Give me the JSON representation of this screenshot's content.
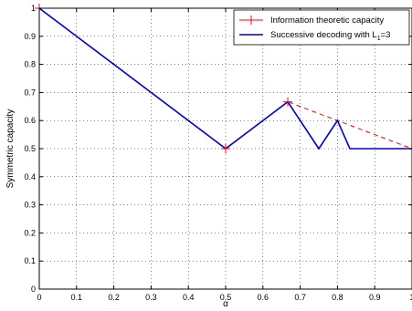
{
  "chart_data": {
    "type": "line",
    "xlabel": "α",
    "ylabel": "Symmetric capacity",
    "xlim": [
      0,
      1
    ],
    "ylim": [
      0,
      1
    ],
    "xticks": [
      "0",
      "0.1",
      "0.2",
      "0.3",
      "0.4",
      "0.5",
      "0.6",
      "0.7",
      "0.8",
      "0.9",
      "1"
    ],
    "yticks": [
      "0",
      "0.1",
      "0.2",
      "0.3",
      "0.4",
      "0.5",
      "0.6",
      "0.7",
      "0.8",
      "0.9",
      "1"
    ],
    "grid": true,
    "legend_position": "top-right",
    "series": [
      {
        "name": "Information theoretic capacity",
        "color": "#ff0000",
        "style": "dashed-with-plus-markers",
        "x": [
          0,
          0.5,
          0.6667,
          1
        ],
        "y": [
          1,
          0.5,
          0.6667,
          0.5
        ]
      },
      {
        "name_parts": [
          "Successive decoding with L",
          "1",
          "=3"
        ],
        "color": "#0000cc",
        "style": "solid",
        "x": [
          0,
          0.5,
          0.6667,
          0.75,
          0.8,
          0.8333,
          1
        ],
        "y": [
          1,
          0.5,
          0.6667,
          0.5,
          0.6,
          0.5,
          0.5
        ]
      }
    ]
  }
}
